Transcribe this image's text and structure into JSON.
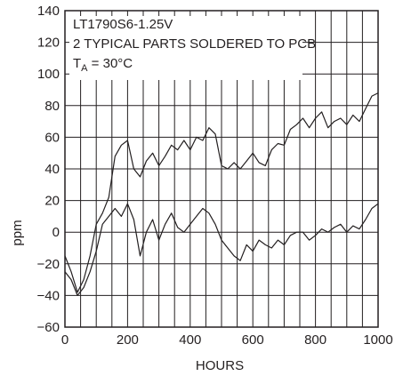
{
  "chart_data": {
    "type": "line",
    "title": "",
    "xlabel": "HOURS",
    "ylabel": "ppm",
    "xlim": [
      0,
      1000
    ],
    "ylim": [
      -60,
      140
    ],
    "xticks": [
      0,
      200,
      400,
      600,
      800,
      1000
    ],
    "xtick_labels": [
      "0",
      "200",
      "400",
      "600",
      "800",
      "1000"
    ],
    "yticks": [
      -60,
      -40,
      -20,
      0,
      20,
      40,
      60,
      80,
      100,
      120,
      140
    ],
    "ytick_labels": [
      "−60",
      "−40",
      "−20",
      "0",
      "20",
      "40",
      "60",
      "80",
      "100",
      "120",
      "140"
    ],
    "grid": true,
    "annotation": {
      "line1": "LT1790S6-1.25V",
      "line2": "2 TYPICAL PARTS SOLDERED TO PCB",
      "line3_main": "T",
      "line3_sub": "A",
      "line3_rest": " = 30°C"
    },
    "series": [
      {
        "x": [
          0,
          20,
          40,
          60,
          80,
          100,
          120,
          140,
          160,
          180,
          200,
          220,
          240,
          260,
          280,
          300,
          320,
          340,
          360,
          380,
          400,
          420,
          440,
          460,
          480,
          500,
          520,
          540,
          560,
          580,
          600,
          620,
          640,
          660,
          680,
          700,
          720,
          740,
          760,
          780,
          800,
          820,
          840,
          860,
          880,
          900,
          920,
          940,
          960,
          980,
          1000
        ],
        "y": [
          -15,
          -25,
          -38,
          -30,
          -15,
          5,
          12,
          22,
          48,
          55,
          58,
          40,
          35,
          45,
          50,
          42,
          48,
          55,
          52,
          58,
          52,
          60,
          58,
          66,
          62,
          42,
          40,
          44,
          40,
          45,
          50,
          44,
          42,
          52,
          56,
          55,
          65,
          68,
          72,
          66,
          72,
          76,
          66,
          70,
          72,
          68,
          74,
          70,
          78,
          86,
          88
        ]
      },
      {
        "x": [
          0,
          20,
          40,
          60,
          80,
          100,
          120,
          140,
          160,
          180,
          200,
          220,
          240,
          260,
          280,
          300,
          320,
          340,
          360,
          380,
          400,
          420,
          440,
          460,
          480,
          500,
          520,
          540,
          560,
          580,
          600,
          620,
          640,
          660,
          680,
          700,
          720,
          740,
          760,
          780,
          800,
          820,
          840,
          860,
          880,
          900,
          920,
          940,
          960,
          980,
          1000
        ],
        "y": [
          -25,
          -30,
          -40,
          -35,
          -25,
          -12,
          5,
          10,
          15,
          10,
          18,
          8,
          -15,
          0,
          8,
          -5,
          5,
          12,
          3,
          0,
          5,
          10,
          15,
          12,
          5,
          -5,
          -10,
          -15,
          -18,
          -8,
          -12,
          -5,
          -8,
          -10,
          -5,
          -8,
          -2,
          0,
          0,
          -5,
          -2,
          2,
          0,
          3,
          5,
          0,
          4,
          2,
          8,
          15,
          18
        ]
      }
    ]
  }
}
